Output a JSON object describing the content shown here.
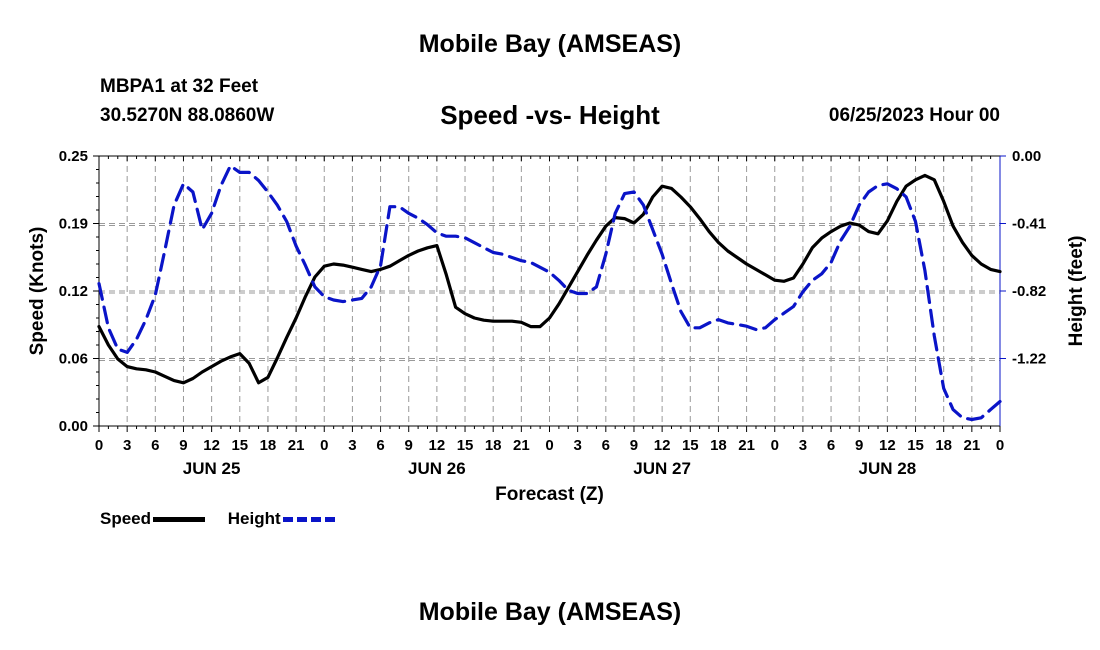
{
  "header": {
    "title": "Mobile Bay (AMSEAS)",
    "station": "MBPA1 at 32 Feet",
    "coords": "30.5270N  88.0860W",
    "chart_title": "Speed -vs- Height",
    "datetime": "06/25/2023 Hour 00"
  },
  "footer": {
    "title": "Mobile Bay (AMSEAS)"
  },
  "chart_data": {
    "type": "line",
    "title": "Speed -vs- Height",
    "xlabel": "Forecast (Z)",
    "ylabel": "Speed (Knots)",
    "y2label": "Height (feet)",
    "x_range_hours": [
      0,
      96
    ],
    "x_tick_labels": [
      "0",
      "3",
      "6",
      "9",
      "12",
      "15",
      "18",
      "21",
      "0",
      "3",
      "6",
      "9",
      "12",
      "15",
      "18",
      "21",
      "0",
      "3",
      "6",
      "9",
      "12",
      "15",
      "18",
      "21",
      "0",
      "3",
      "6",
      "9",
      "12",
      "15",
      "18",
      "21",
      "0"
    ],
    "day_labels": [
      "JUN 25",
      "JUN 26",
      "JUN 27",
      "JUN 28"
    ],
    "ylim": [
      0,
      0.25
    ],
    "y_ticks": [
      "0.00",
      "0.06",
      "0.12",
      "0.19",
      "0.25"
    ],
    "y2lim": [
      -1.65,
      0
    ],
    "y2_ticks": [
      "0.00",
      "-0.41",
      "-0.82",
      "-1.22"
    ],
    "grid": true,
    "legend_position": "bottom-left",
    "series": [
      {
        "name": "Speed",
        "axis": "left",
        "color": "#000000",
        "style": "solid",
        "x": [
          0,
          1,
          2,
          3,
          4,
          5,
          6,
          7,
          8,
          9,
          10,
          11,
          12,
          13,
          14,
          15,
          16,
          17,
          18,
          19,
          20,
          21,
          22,
          23,
          24,
          25,
          26,
          27,
          28,
          29,
          30,
          31,
          32,
          33,
          34,
          35,
          36,
          37,
          38,
          39,
          40,
          41,
          42,
          43,
          44,
          45,
          46,
          47,
          48,
          49,
          50,
          51,
          52,
          53,
          54,
          55,
          56,
          57,
          58,
          59,
          60,
          61,
          62,
          63,
          64,
          65,
          66,
          67,
          68,
          69,
          70,
          71,
          72,
          73,
          74,
          75,
          76,
          77,
          78,
          79,
          80,
          81,
          82,
          83,
          84,
          85,
          86,
          87,
          88,
          89,
          90,
          91,
          92,
          93,
          94,
          95,
          96
        ],
        "y": [
          0.092,
          0.075,
          0.062,
          0.055,
          0.053,
          0.052,
          0.05,
          0.046,
          0.042,
          0.04,
          0.044,
          0.05,
          0.055,
          0.06,
          0.064,
          0.067,
          0.058,
          0.04,
          0.045,
          0.063,
          0.082,
          0.1,
          0.12,
          0.138,
          0.148,
          0.15,
          0.149,
          0.147,
          0.145,
          0.143,
          0.145,
          0.148,
          0.153,
          0.158,
          0.162,
          0.165,
          0.167,
          0.14,
          0.11,
          0.104,
          0.1,
          0.098,
          0.097,
          0.097,
          0.097,
          0.096,
          0.092,
          0.092,
          0.1,
          0.113,
          0.128,
          0.143,
          0.158,
          0.172,
          0.185,
          0.193,
          0.192,
          0.188,
          0.196,
          0.212,
          0.222,
          0.22,
          0.212,
          0.203,
          0.192,
          0.18,
          0.17,
          0.162,
          0.156,
          0.15,
          0.145,
          0.14,
          0.135,
          0.134,
          0.137,
          0.15,
          0.165,
          0.174,
          0.18,
          0.185,
          0.188,
          0.186,
          0.18,
          0.178,
          0.19,
          0.208,
          0.222,
          0.228,
          0.232,
          0.228,
          0.208,
          0.185,
          0.17,
          0.158,
          0.15,
          0.145,
          0.143
        ]
      },
      {
        "name": "Height",
        "axis": "right",
        "color": "#0a14c8",
        "style": "dashed",
        "x": [
          0,
          1,
          2,
          3,
          4,
          5,
          6,
          7,
          8,
          9,
          10,
          11,
          12,
          13,
          14,
          15,
          16,
          17,
          18,
          19,
          20,
          21,
          22,
          23,
          24,
          25,
          26,
          27,
          28,
          29,
          30,
          31,
          32,
          33,
          34,
          35,
          36,
          37,
          38,
          39,
          40,
          41,
          42,
          43,
          44,
          45,
          46,
          47,
          48,
          49,
          50,
          51,
          52,
          53,
          54,
          55,
          56,
          57,
          58,
          59,
          60,
          61,
          62,
          63,
          64,
          65,
          66,
          67,
          68,
          69,
          70,
          71,
          72,
          73,
          74,
          75,
          76,
          77,
          78,
          79,
          80,
          81,
          82,
          83,
          84,
          85,
          86,
          87,
          88,
          89,
          90,
          91,
          92,
          93,
          94,
          95,
          96
        ],
        "y": [
          -0.78,
          -1.05,
          -1.18,
          -1.2,
          -1.12,
          -1.0,
          -0.85,
          -0.58,
          -0.3,
          -0.17,
          -0.22,
          -0.45,
          -0.35,
          -0.18,
          -0.06,
          -0.1,
          -0.1,
          -0.15,
          -0.22,
          -0.3,
          -0.4,
          -0.55,
          -0.67,
          -0.8,
          -0.86,
          -0.88,
          -0.89,
          -0.88,
          -0.87,
          -0.8,
          -0.67,
          -0.31,
          -0.31,
          -0.35,
          -0.38,
          -0.42,
          -0.47,
          -0.49,
          -0.49,
          -0.5,
          -0.53,
          -0.56,
          -0.59,
          -0.6,
          -0.62,
          -0.64,
          -0.65,
          -0.68,
          -0.71,
          -0.76,
          -0.82,
          -0.84,
          -0.84,
          -0.8,
          -0.6,
          -0.35,
          -0.23,
          -0.22,
          -0.3,
          -0.45,
          -0.6,
          -0.78,
          -0.95,
          -1.05,
          -1.05,
          -1.02,
          -1.0,
          -1.02,
          -1.03,
          -1.04,
          -1.06,
          -1.05,
          -1.0,
          -0.96,
          -0.92,
          -0.83,
          -0.76,
          -0.72,
          -0.65,
          -0.52,
          -0.43,
          -0.3,
          -0.22,
          -0.18,
          -0.17,
          -0.2,
          -0.25,
          -0.4,
          -0.7,
          -1.1,
          -1.42,
          -1.55,
          -1.6,
          -1.61,
          -1.6,
          -1.55,
          -1.5
        ]
      }
    ]
  }
}
